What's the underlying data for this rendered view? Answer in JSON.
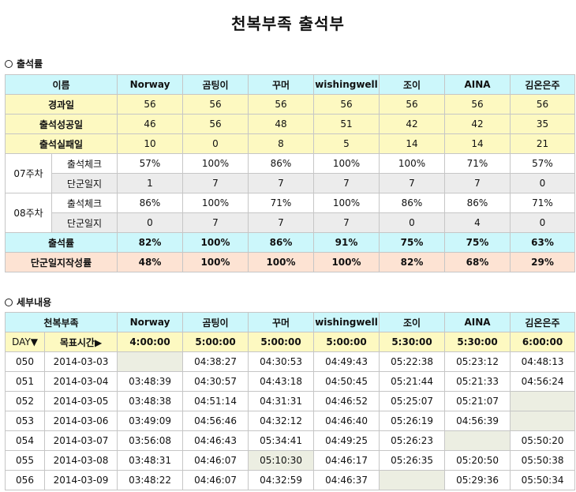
{
  "title": "천복부족 출석부",
  "section1": {
    "label": "출석률"
  },
  "section2": {
    "label": "세부내용"
  },
  "members": [
    "Norway",
    "곰팅이",
    "꾸머",
    "wishingwell",
    "조이",
    "AINA",
    "김온은주"
  ],
  "summary": {
    "header_label": "이름",
    "elapsed": {
      "label": "경과일",
      "values": [
        "56",
        "56",
        "56",
        "56",
        "56",
        "56",
        "56"
      ]
    },
    "success": {
      "label": "출석성공일",
      "values": [
        "46",
        "56",
        "48",
        "51",
        "42",
        "42",
        "35"
      ]
    },
    "fail": {
      "label": "출석실패일",
      "values": [
        "10",
        "0",
        "8",
        "5",
        "14",
        "14",
        "21"
      ]
    },
    "weeks": [
      {
        "label": "07주차",
        "check": {
          "label": "출석체크",
          "values": [
            "57%",
            "100%",
            "86%",
            "100%",
            "100%",
            "71%",
            "57%"
          ]
        },
        "diary": {
          "label": "단군일지",
          "values": [
            "1",
            "7",
            "7",
            "7",
            "7",
            "7",
            "0"
          ]
        }
      },
      {
        "label": "08주차",
        "check": {
          "label": "출석체크",
          "values": [
            "86%",
            "100%",
            "71%",
            "100%",
            "86%",
            "86%",
            "71%"
          ]
        },
        "diary": {
          "label": "단군일지",
          "values": [
            "0",
            "7",
            "7",
            "7",
            "0",
            "4",
            "0"
          ]
        }
      }
    ],
    "rate": {
      "label": "출석률",
      "values": [
        "82%",
        "100%",
        "86%",
        "91%",
        "75%",
        "75%",
        "63%"
      ]
    },
    "diary_rate": {
      "label": "단군일지작성률",
      "values": [
        "48%",
        "100%",
        "100%",
        "100%",
        "82%",
        "68%",
        "29%"
      ]
    }
  },
  "detail": {
    "header_label": "천복부족",
    "day_label": "DAY▼",
    "target_label": "목표시간▶",
    "targets": [
      "4:00:00",
      "5:00:00",
      "5:00:00",
      "5:00:00",
      "5:30:00",
      "5:30:00",
      "6:00:00"
    ],
    "rows": [
      {
        "day": "050",
        "date": "2014-03-03",
        "times": [
          "",
          "04:38:27",
          "04:30:53",
          "04:49:43",
          "05:22:38",
          "05:23:12",
          "04:48:13"
        ]
      },
      {
        "day": "051",
        "date": "2014-03-04",
        "times": [
          "03:48:39",
          "04:30:57",
          "04:43:18",
          "04:50:45",
          "05:21:44",
          "05:21:33",
          "04:56:24"
        ]
      },
      {
        "day": "052",
        "date": "2014-03-05",
        "times": [
          "03:48:38",
          "04:51:14",
          "04:31:31",
          "04:46:52",
          "05:25:07",
          "05:21:07",
          ""
        ]
      },
      {
        "day": "053",
        "date": "2014-03-06",
        "times": [
          "03:49:09",
          "04:56:46",
          "04:32:12",
          "04:46:40",
          "05:26:19",
          "04:56:39",
          ""
        ]
      },
      {
        "day": "054",
        "date": "2014-03-07",
        "times": [
          "03:56:08",
          "04:46:43",
          "05:34:41",
          "04:49:25",
          "05:26:23",
          "",
          "05:50:20"
        ]
      },
      {
        "day": "055",
        "date": "2014-03-08",
        "times": [
          "03:48:31",
          "04:46:07",
          "05:10:30",
          "04:46:17",
          "05:26:35",
          "05:20:50",
          "05:50:38"
        ]
      },
      {
        "day": "056",
        "date": "2014-03-09",
        "times": [
          "03:48:22",
          "04:46:07",
          "04:32:59",
          "04:46:37",
          "",
          "05:29:36",
          "05:50:34"
        ]
      }
    ],
    "missed": [
      [
        0,
        0
      ],
      [
        2,
        6
      ],
      [
        3,
        6
      ],
      [
        4,
        5
      ],
      [
        5,
        2
      ],
      [
        6,
        4
      ]
    ]
  }
}
